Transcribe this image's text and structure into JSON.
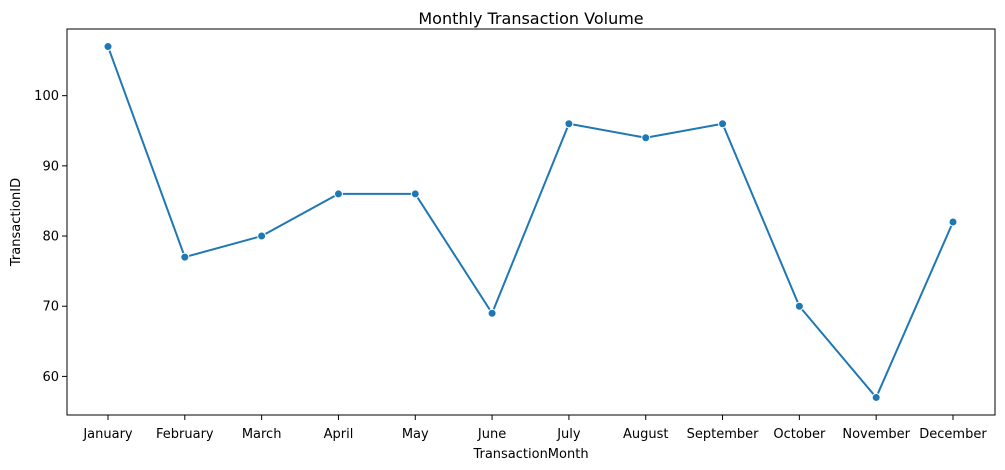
{
  "chart_data": {
    "type": "line",
    "title": "Monthly Transaction Volume",
    "xlabel": "TransactionMonth",
    "ylabel": "TransactionID",
    "categories": [
      "January",
      "February",
      "March",
      "April",
      "May",
      "June",
      "July",
      "August",
      "September",
      "October",
      "November",
      "December"
    ],
    "series": [
      {
        "values": [
          107,
          77,
          80,
          86,
          86,
          69,
          96,
          94,
          96,
          70,
          57,
          82
        ],
        "color": "#1f77b4",
        "marker": "circle"
      }
    ],
    "ylim": [
      54.5,
      109.5
    ],
    "yticks": [
      60,
      70,
      80,
      90,
      100
    ],
    "grid": false,
    "legend": false
  }
}
